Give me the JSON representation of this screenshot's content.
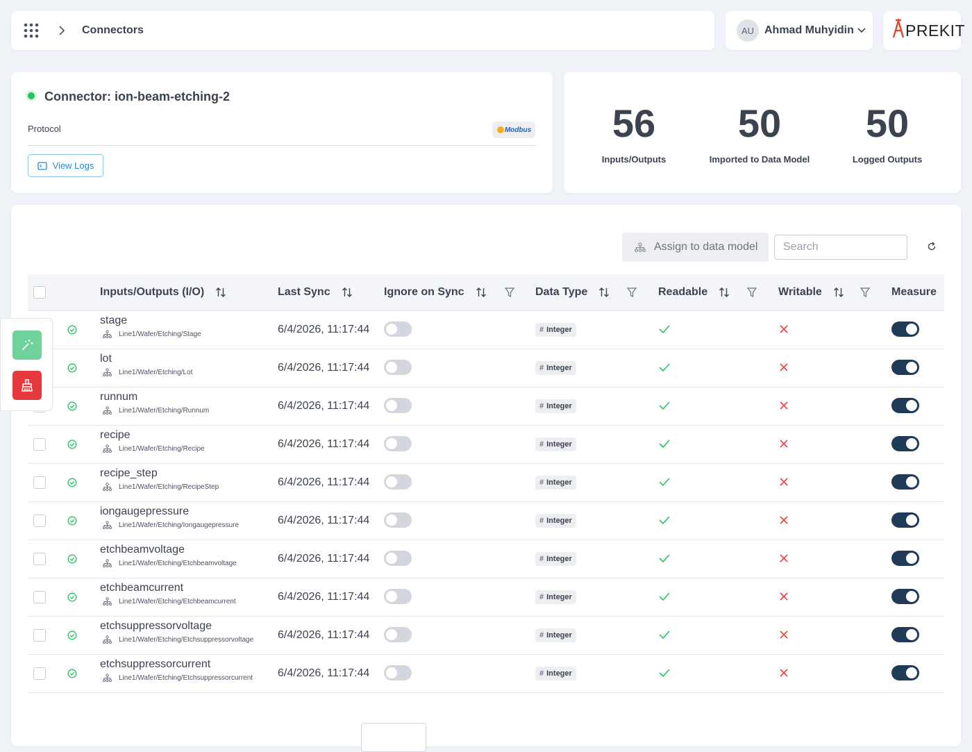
{
  "header": {
    "breadcrumb": "Connectors",
    "user_initials": "AU",
    "user_name": "Ahmad Muhyidin",
    "logo": "PREKIT"
  },
  "connector": {
    "title": "Connector: ion-beam-etching-2",
    "protocol_label": "Protocol",
    "protocol_badge": "Modbus",
    "view_logs": "View Logs"
  },
  "stats": [
    {
      "value": 56,
      "label": "Inputs/Outputs"
    },
    {
      "value": 50,
      "label": "Imported to Data Model"
    },
    {
      "value": 50,
      "label": "Logged Outputs"
    }
  ],
  "toolbar": {
    "assign": "Assign to data model",
    "search_placeholder": "Search"
  },
  "table": {
    "columns": [
      {
        "label": "Inputs/Outputs (I/O)",
        "sortable": true,
        "filterable": false
      },
      {
        "label": "Last Sync",
        "sortable": true,
        "filterable": false
      },
      {
        "label": "Ignore on Sync",
        "sortable": true,
        "filterable": true
      },
      {
        "label": "Data Type",
        "sortable": true,
        "filterable": true
      },
      {
        "label": "Readable",
        "sortable": true,
        "filterable": true
      },
      {
        "label": "Writable",
        "sortable": true,
        "filterable": true
      },
      {
        "label": "Measure",
        "sortable": false,
        "filterable": false
      }
    ],
    "rows": [
      {
        "name": "stage",
        "path": "Line1/Wafer/Etching/Stage",
        "last_sync": "6/4/2026, 11:17:44",
        "ignore_on_sync": false,
        "data_type": "Integer",
        "readable": true,
        "writable": false,
        "measure": true
      },
      {
        "name": "lot",
        "path": "Line1/Wafer/Etching/Lot",
        "last_sync": "6/4/2026, 11:17:44",
        "ignore_on_sync": false,
        "data_type": "Integer",
        "readable": true,
        "writable": false,
        "measure": true
      },
      {
        "name": "runnum",
        "path": "Line1/Wafer/Etching/Runnum",
        "last_sync": "6/4/2026, 11:17:44",
        "ignore_on_sync": false,
        "data_type": "Integer",
        "readable": true,
        "writable": false,
        "measure": true
      },
      {
        "name": "recipe",
        "path": "Line1/Wafer/Etching/Recipe",
        "last_sync": "6/4/2026, 11:17:44",
        "ignore_on_sync": false,
        "data_type": "Integer",
        "readable": true,
        "writable": false,
        "measure": true
      },
      {
        "name": "recipe_step",
        "path": "Line1/Wafer/Etching/RecipeStep",
        "last_sync": "6/4/2026, 11:17:44",
        "ignore_on_sync": false,
        "data_type": "Integer",
        "readable": true,
        "writable": false,
        "measure": true
      },
      {
        "name": "iongaugepressure",
        "path": "Line1/Wafer/Etching/Iongaugepressure",
        "last_sync": "6/4/2026, 11:17:44",
        "ignore_on_sync": false,
        "data_type": "Integer",
        "readable": true,
        "writable": false,
        "measure": true
      },
      {
        "name": "etchbeamvoltage",
        "path": "Line1/Wafer/Etching/Etchbeamvoltage",
        "last_sync": "6/4/2026, 11:17:44",
        "ignore_on_sync": false,
        "data_type": "Integer",
        "readable": true,
        "writable": false,
        "measure": true
      },
      {
        "name": "etchbeamcurrent",
        "path": "Line1/Wafer/Etching/Etchbeamcurrent",
        "last_sync": "6/4/2026, 11:17:44",
        "ignore_on_sync": false,
        "data_type": "Integer",
        "readable": true,
        "writable": false,
        "measure": true
      },
      {
        "name": "etchsuppressorvoltage",
        "path": "Line1/Wafer/Etching/Etchsuppressorvoltage",
        "last_sync": "6/4/2026, 11:17:44",
        "ignore_on_sync": false,
        "data_type": "Integer",
        "readable": true,
        "writable": false,
        "measure": true
      },
      {
        "name": "etchsuppressorcurrent",
        "path": "Line1/Wafer/Etching/Etchsuppressorcurrent",
        "last_sync": "6/4/2026, 11:17:44",
        "ignore_on_sync": false,
        "data_type": "Integer",
        "readable": true,
        "writable": false,
        "measure": true
      }
    ]
  }
}
